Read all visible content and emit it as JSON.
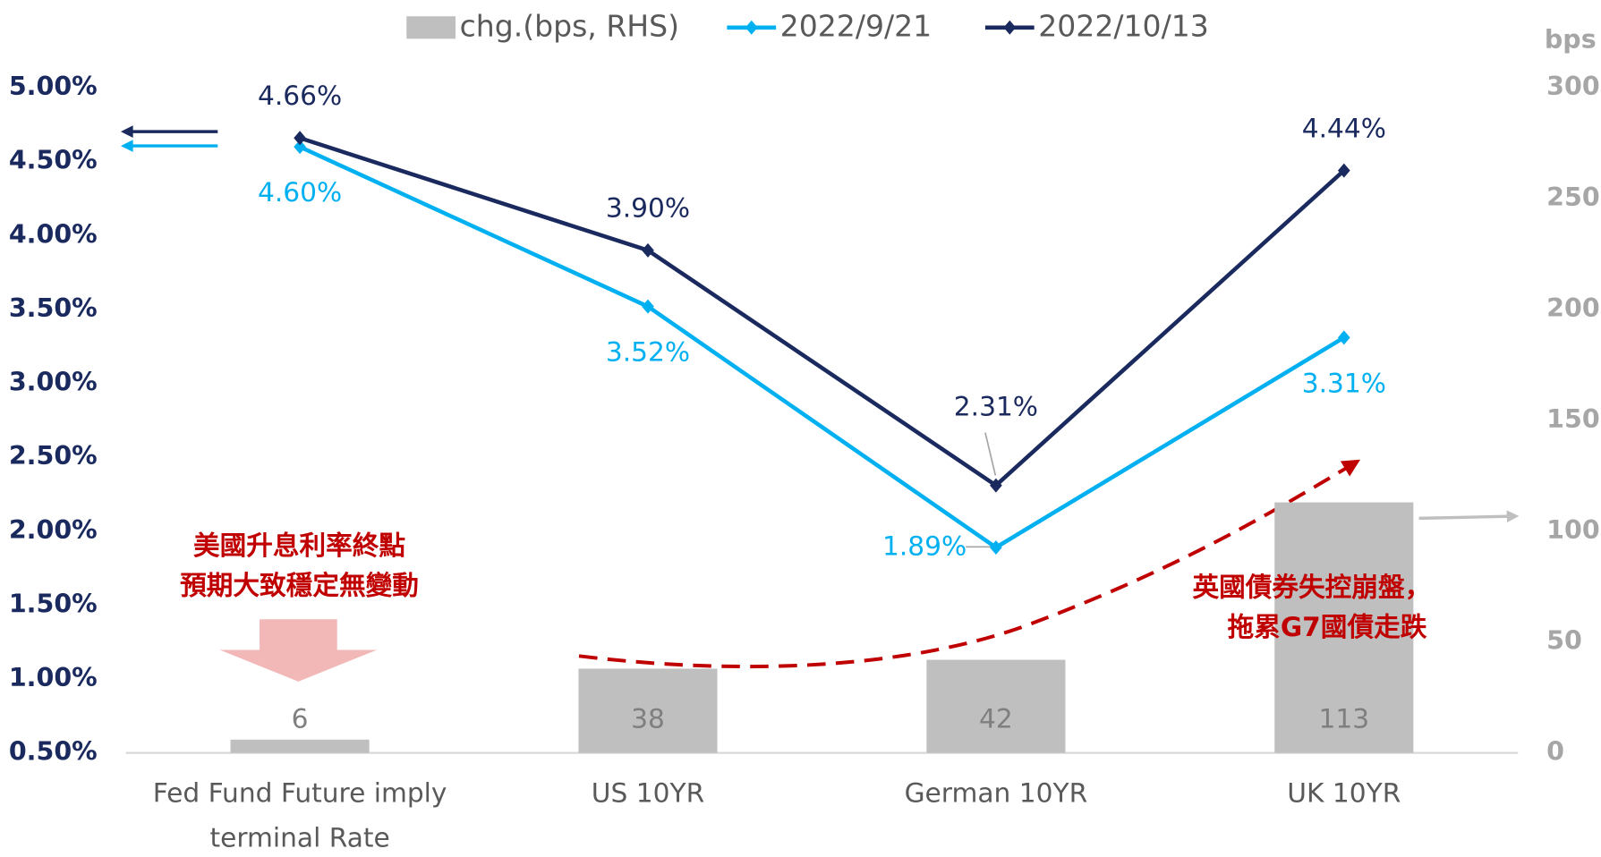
{
  "chart_data": {
    "type": "bar-line",
    "categories": [
      "Fed Fund Future imply terminal Rate",
      "US 10YR",
      "German 10YR",
      "UK 10YR"
    ],
    "series": [
      {
        "name": "chg.(bps, RHS)",
        "type": "bar",
        "axis": "y2",
        "color": "#bfbfbf",
        "values": [
          6,
          38,
          42,
          113
        ]
      },
      {
        "name": "2022/9/21",
        "type": "line",
        "axis": "y",
        "color": "#00b0f0",
        "values": [
          4.6,
          3.52,
          1.89,
          3.31
        ],
        "value_labels": [
          "4.60%",
          "3.52%",
          "1.89%",
          "3.31%"
        ]
      },
      {
        "name": "2022/10/13",
        "type": "line",
        "axis": "y",
        "color": "#1b2a5e",
        "values": [
          4.66,
          3.9,
          2.31,
          4.44
        ],
        "value_labels": [
          "4.66%",
          "3.90%",
          "2.31%",
          "4.44%"
        ]
      }
    ],
    "ylim": [
      0.5,
      5.0
    ],
    "yticks": [
      {
        "value": 0.5,
        "label": "0.50%"
      },
      {
        "value": 1.0,
        "label": "1.00%"
      },
      {
        "value": 1.5,
        "label": "1.50%"
      },
      {
        "value": 2.0,
        "label": "2.00%"
      },
      {
        "value": 2.5,
        "label": "2.50%"
      },
      {
        "value": 3.0,
        "label": "3.00%"
      },
      {
        "value": 3.5,
        "label": "3.50%"
      },
      {
        "value": 4.0,
        "label": "4.00%"
      },
      {
        "value": 4.5,
        "label": "4.50%"
      },
      {
        "value": 5.0,
        "label": "5.00%"
      }
    ],
    "y2label": "bps",
    "y2lim": [
      0,
      300
    ],
    "y2ticks": [
      0,
      50,
      100,
      150,
      200,
      250,
      300
    ],
    "legend": "top",
    "annotations": [
      "美國升息利率終點",
      "預期大致穩定無變動",
      "英國債券失控崩盤，",
      "拖累G7國債走跌"
    ]
  }
}
